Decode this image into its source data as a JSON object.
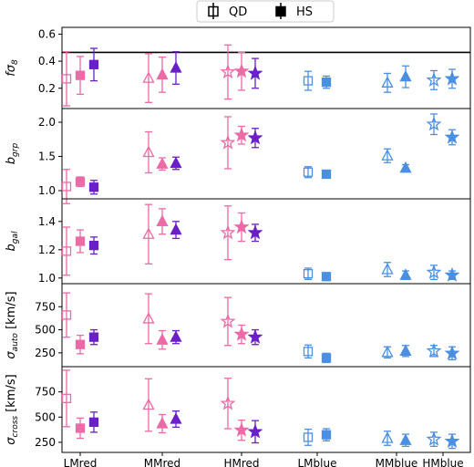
{
  "legend": {
    "items": [
      {
        "label": "QD",
        "marker": "open-square"
      },
      {
        "label": "HS",
        "marker": "filled-square"
      }
    ]
  },
  "colors": {
    "pink": "#ec6aa6",
    "purple": "#6a1fc7",
    "blue": "#4a90e2"
  },
  "chart_data": {
    "type": "scatter",
    "categories": [
      "LMred",
      "MMred",
      "HMred",
      "LMblue",
      "MMblue",
      "HMblue"
    ],
    "markers": {
      "LMred": "square",
      "MMred": "triangle",
      "HMred": "star",
      "LMblue": "square",
      "MMblue": "triangle",
      "HMblue": "star"
    },
    "panels": [
      {
        "ylabel_main": "fσ",
        "ylabel_sub": "8",
        "ylim": [
          0.05,
          0.65
        ],
        "ticks": [
          0.2,
          0.4,
          0.6
        ],
        "hline": 0.465,
        "red": {
          "QD": {
            "y": [
              0.27,
              0.275,
              0.32
            ],
            "err": [
              0.2,
              0.18,
              0.2
            ]
          },
          "HS_pink": {
            "y": [
              0.295,
              0.3,
              0.325
            ],
            "err": [
              0.14,
              0.13,
              0.14
            ]
          },
          "HS_purple": {
            "y": [
              0.375,
              0.35,
              0.31
            ],
            "err": [
              0.12,
              0.12,
              0.11
            ]
          }
        },
        "blue": {
          "QD": {
            "y": [
              0.255,
              0.24,
              0.26
            ],
            "err": [
              0.07,
              0.07,
              0.07
            ]
          },
          "HS": {
            "y": [
              0.245,
              0.285,
              0.27
            ],
            "err": [
              0.045,
              0.08,
              0.07
            ]
          }
        }
      },
      {
        "ylabel_main": "b",
        "ylabel_sub": "grp",
        "ylim": [
          0.88,
          2.2
        ],
        "ticks": [
          1.0,
          1.5,
          2.0
        ],
        "red": {
          "QD": {
            "y": [
              1.06,
              1.56,
              1.7
            ],
            "err": [
              0.25,
              0.3,
              0.38
            ]
          },
          "HS_pink": {
            "y": [
              1.13,
              1.39,
              1.81
            ],
            "err": [
              0.07,
              0.09,
              0.13
            ]
          },
          "HS_purple": {
            "y": [
              1.05,
              1.4,
              1.77
            ],
            "err": [
              0.1,
              0.09,
              0.14
            ]
          }
        },
        "blue": {
          "QD": {
            "y": [
              1.27,
              1.51,
              1.97
            ],
            "err": [
              0.08,
              0.1,
              0.15
            ]
          },
          "HS": {
            "y": [
              1.24,
              1.33,
              1.78
            ],
            "err": [
              0.04,
              0.05,
              0.11
            ]
          }
        }
      },
      {
        "ylabel_main": "b",
        "ylabel_sub": "gal",
        "ylim": [
          0.96,
          1.56
        ],
        "ticks": [
          1.0,
          1.2,
          1.4
        ],
        "red": {
          "QD": {
            "y": [
              1.19,
              1.31,
              1.32
            ],
            "err": [
              0.17,
              0.21,
              0.19
            ]
          },
          "HS_pink": {
            "y": [
              1.26,
              1.4,
              1.36
            ],
            "err": [
              0.08,
              0.09,
              0.1
            ]
          },
          "HS_purple": {
            "y": [
              1.23,
              1.34,
              1.32
            ],
            "err": [
              0.06,
              0.06,
              0.06
            ]
          }
        },
        "blue": {
          "QD": {
            "y": [
              1.03,
              1.06,
              1.04
            ],
            "err": [
              0.04,
              0.05,
              0.05
            ]
          },
          "HS": {
            "y": [
              1.01,
              1.02,
              1.02
            ],
            "err": [
              0.025,
              0.03,
              0.03
            ]
          }
        }
      },
      {
        "ylabel_main": "σ",
        "ylabel_sub": "auto",
        "ylabel_unit": " [km/s]",
        "ylim": [
          100,
          1000
        ],
        "ticks": [
          250,
          500,
          750
        ],
        "red": {
          "QD": {
            "y": [
              660,
              620,
              590
            ],
            "err": [
              240,
              270,
              260
            ]
          },
          "HS_pink": {
            "y": [
              340,
              390,
              450
            ],
            "err": [
              100,
              100,
              100
            ]
          },
          "HS_purple": {
            "y": [
              420,
              420,
              420
            ],
            "err": [
              80,
              70,
              80
            ]
          }
        },
        "blue": {
          "QD": {
            "y": [
              265,
              255,
              270
            ],
            "err": [
              70,
              60,
              60
            ]
          },
          "HS": {
            "y": [
              195,
              270,
              245
            ],
            "err": [
              50,
              60,
              70
            ]
          }
        }
      },
      {
        "ylabel_main": "σ",
        "ylabel_sub": "cross",
        "ylabel_unit": " [km/s]",
        "ylim": [
          150,
          1000
        ],
        "ticks": [
          250,
          500,
          750
        ],
        "red": {
          "QD": {
            "y": [
              685,
              620,
              635
            ],
            "err": [
              280,
              260,
              250
            ]
          },
          "HS_pink": {
            "y": [
              390,
              435,
              370
            ],
            "err": [
              100,
              90,
              100
            ]
          },
          "HS_purple": {
            "y": [
              450,
              480,
              355
            ],
            "err": [
              100,
              80,
              110
            ]
          }
        },
        "blue": {
          "QD": {
            "y": [
              300,
              290,
              280
            ],
            "err": [
              80,
              70,
              70
            ]
          },
          "HS": {
            "y": [
              325,
              270,
              260
            ],
            "err": [
              60,
              60,
              70
            ]
          }
        }
      }
    ]
  }
}
